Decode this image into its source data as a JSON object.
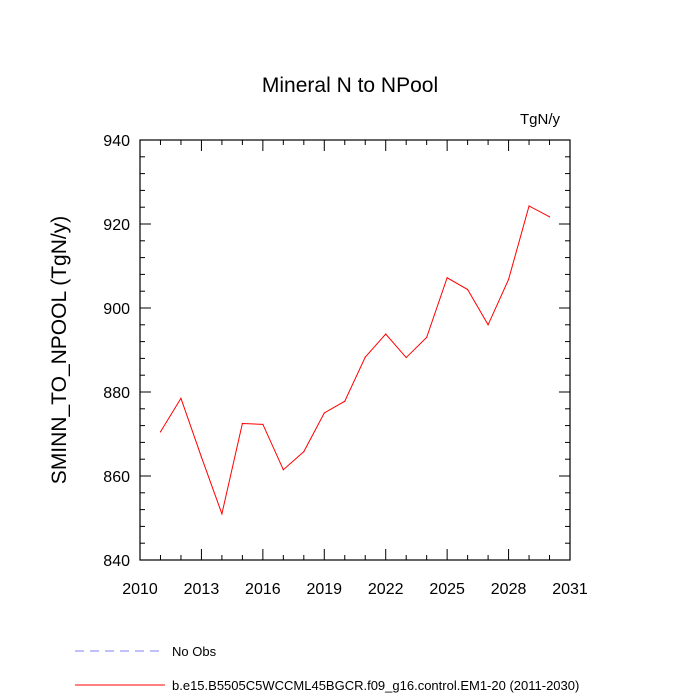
{
  "chart_data": {
    "type": "line",
    "title": "Mineral N to NPool",
    "units": "TgN/y",
    "ylabel": "SMINN_TO_NPOOL  (TgN/y)",
    "xlabel": "",
    "xlim": [
      2010,
      2031
    ],
    "ylim": [
      840,
      940
    ],
    "xticks": [
      2010,
      2013,
      2016,
      2019,
      2022,
      2025,
      2028,
      2031
    ],
    "yticks": [
      840,
      860,
      880,
      900,
      920,
      940
    ],
    "grid": false,
    "legend_position": "bottom-left",
    "series": [
      {
        "name": "b.e15.B5505C5WCCML45BGCR.f09_g16.control.EM1-20 (2011-2030)",
        "color": "#ff0000",
        "dash": "solid",
        "x": [
          2011,
          2012,
          2013,
          2014,
          2015,
          2016,
          2017,
          2018,
          2019,
          2020,
          2021,
          2022,
          2023,
          2024,
          2025,
          2026,
          2027,
          2028,
          2029,
          2030
        ],
        "y": [
          870.5,
          878.5,
          864.5,
          851,
          872.5,
          872.3,
          861.5,
          865.8,
          875,
          877.8,
          888.3,
          893.8,
          888.2,
          893,
          907.2,
          904.4,
          896,
          906.8,
          924.3,
          921.7
        ]
      },
      {
        "name": "No Obs",
        "color": "#8080ff",
        "dash": "dashed",
        "x": [],
        "y": []
      }
    ]
  }
}
